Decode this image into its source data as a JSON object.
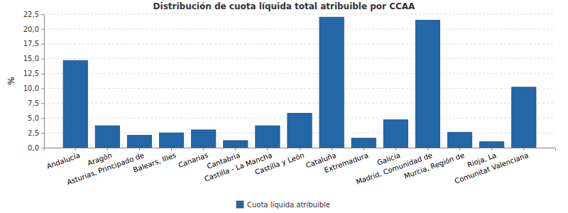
{
  "chart_data": {
    "type": "bar",
    "title": "Distribución de cuota líquida total atribuible por CCAA",
    "ylabel": "%",
    "categories": [
      "Andalucía",
      "Aragón",
      "Asturias, Principado de",
      "Balears, Illes",
      "Canarias",
      "Cantabria",
      "Castilla - La Mancha",
      "Castilla y León",
      "Cataluña",
      "Extremadura",
      "Galicia",
      "Madrid, Comunidad de",
      "Murcia, Región de",
      "Rioja, La",
      "Comunitat Valenciana"
    ],
    "series": [
      {
        "name": "Cuota líquida atribuible",
        "color": "#2467a8",
        "values": [
          14.7,
          3.7,
          2.1,
          2.5,
          3.0,
          1.2,
          3.7,
          5.8,
          22.0,
          1.6,
          4.7,
          21.5,
          2.6,
          1.0,
          10.2
        ]
      }
    ],
    "ylim": [
      0,
      22.5
    ],
    "yticks": [
      {
        "value": 0,
        "label": "0,0"
      },
      {
        "value": 2.5,
        "label": "2,5"
      },
      {
        "value": 5,
        "label": "5,0"
      },
      {
        "value": 7.5,
        "label": "7,5"
      },
      {
        "value": 10,
        "label": "10,0"
      },
      {
        "value": 12.5,
        "label": "12,5"
      },
      {
        "value": 15,
        "label": "15,0"
      },
      {
        "value": 17.5,
        "label": "17,5"
      },
      {
        "value": 20,
        "label": "20,0"
      },
      {
        "value": 22.5,
        "label": "22,5"
      }
    ],
    "grid": true,
    "legend": "bottom"
  }
}
